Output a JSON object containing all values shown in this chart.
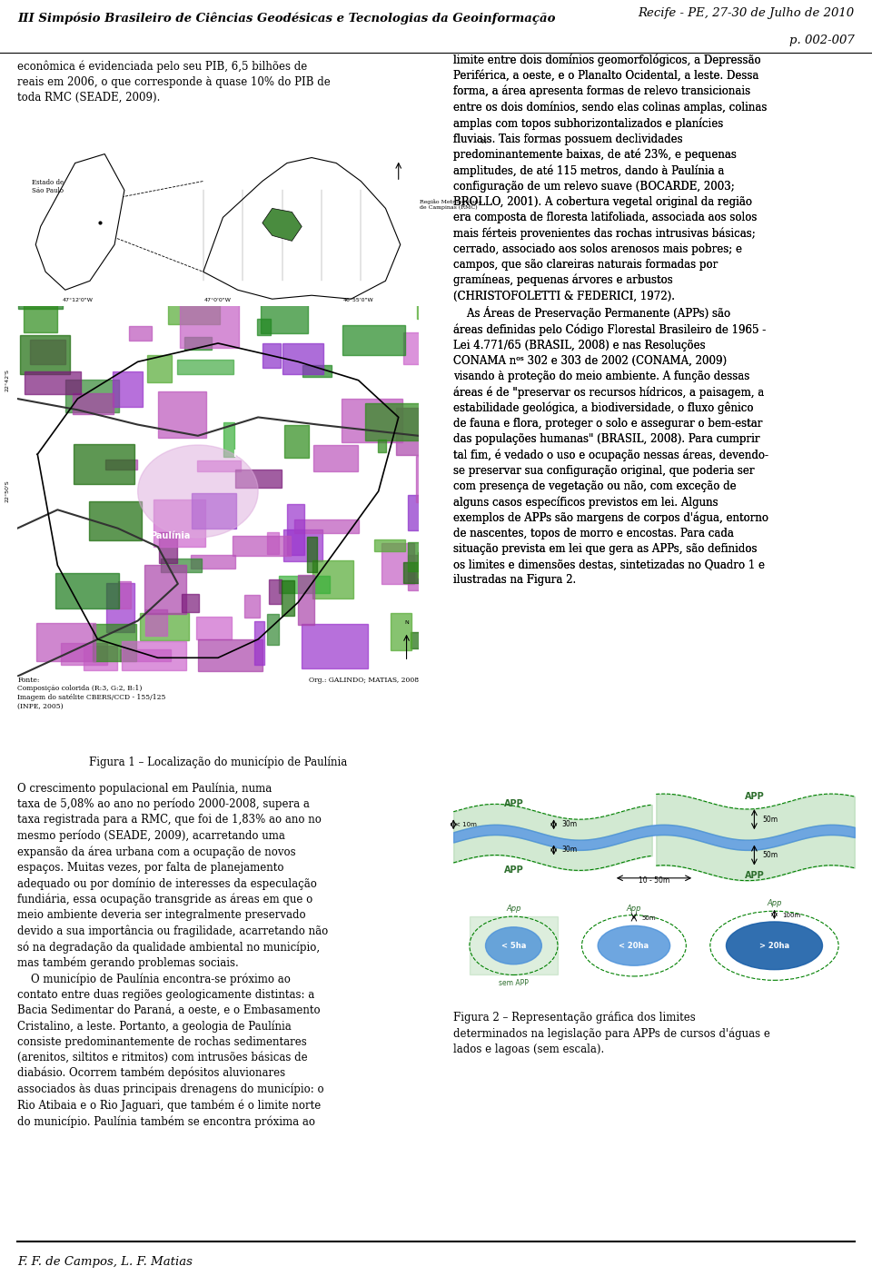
{
  "header_left": "III Simpósio Brasileiro de Ciências Geodésicas e Tecnologias da Geoinformação",
  "header_right": "Recife - PE, 27-30 de Julho de 2010\np. 002-007",
  "footer": "F. F. de Campos, L. F. Matias",
  "col1_text_top": "econômica é evidenciada pelo seu PIB, 6,5 bilhões de\nreais em 2006, o que corresponde à quase 10% do PIB de\ntoda RMC (SEADE, 2009).",
  "figure1_caption": "Figura 1 – Localização do município de Paulínia",
  "figure1_source": "Fonte:\nComposição colorida (R:3, G:2, B:1)\nImagem do satélite CBERS/CCD - 155/125\n(INPE, 2005)",
  "figure1_org": "Org.: GALINDO; MATIAS, 2008",
  "col1_text_bottom": "O crescimento populacional em Paulínia, numa\ntaxa de 5,08% ao ano no período 2000-2008, supera a\ntaxa registrada para a RMC, que foi de 1,83% ao ano no\nmesmo período (SEADE, 2009), acarretando uma\nexpansão da área urbana com a ocupação de novos\nespaços. Muitas vezes, por falta de planejamento\nadequado ou por domínio de interesses da especulação\nfundiária, essa ocupação transgride as áreas em que o\nmeio ambiente deveria ser integralmente preservado\ndevido a sua importância ou fragilidade, acarretando não\nsó na degradação da qualidade ambiental no município,\nmas também gerando problemas sociais.\n    O município de Paulínia encontra-se próximo ao\ncontato entre duas regiões geologicamente distintas: a\nBacia Sedimentar do Paraná, a oeste, e o Embasamento\nCristalino, a leste. Portanto, a geologia de Paulínia\nconsiste predominantemente de rochas sedimentares\n(arenitos, siltitos e ritmitos) com intrusões básicas de\ndiabásio. Ocorrem também depósitos aluvionares\nassociados às duas principais drenagens do município: o\nRio Atibaia e o Rio Jaguari, que também é o limite norte\ndo município. Paulínia também se encontra próxima ao",
  "col2_text": "limite entre dois domínios geomorfológicos, a Depressão\nPeriférica, a oeste, e o Planalto Ocidental, a leste. Dessa\nforma, a área apresenta formas de relevo transicionais\nentre os dois domínios, sendo elas colinas amplas, colinas\namplas com topos subhorizontalizados e planícies\nfluviais. Tais formas possuem declividades\npredominantemente baixas, de até 23%, e pequenas\namplitudes, de até 115 metros, dando à Paulínia a\nconfiguração de um relevo suave (BOCARDE, 2003;\nBROLLO, 2001). A cobertura vegetal original da região\nera composta de floresta latifoliada, associada aos solos\nmais férteis provenientes das rochas intrusivas básicas;\ncerrado, associado aos solos arenosos mais pobres; e\ncampos, que são clareiras naturais formadas por\ngramíneas, pequenas árvores e arbustos\n(CHRISTOFOLETTI & FEDERICI, 1972).\n    As Áreas de Preservação Permanente (APPs) são\náreas definidas pelo Código Florestal Brasileiro de 1965 -\nLei 4.771/65 (BRASIL, 2008) e nas Resoluções\nCONAMA nᵒˢ 302 e 303 de 2002 (CONAMA, 2009)\nvisando à proteção do meio ambiente. A função dessas\náreas é de \"preservar os recursos hídricos, a paisagem, a\nestabilidade geológica, a biodiversidade, o fluxo gênico\nde fauna e flora, proteger o solo e assegurar o bem-estar\ndas populações humanas\" (BRASIL, 2008). Para cumprir\ntal fim, é vedado o uso e ocupação nessas áreas, devendo-\nse preservar sua configuração original, que poderia ser\ncom presença de vegetação ou não, com exceção de\nalguns casos específicos previstos em lei. Alguns\nexemplos de APPs são margens de corpos d'água, entorno\nde nascentes, topos de morro e encostas. Para cada\nsituação prevista em lei que gera as APPs, são definidos\nos limites e dimensões destas, sintetizadas no Quadro 1 e\nilustradas na Figura 2.",
  "figure2_caption": "Figura 2 – Representação gráfica dos limites\ndeterminados na legislação para APPs de cursos d'águas e\nlados e lagoas (sem escala).",
  "bg_color": "#ffffff",
  "text_color": "#000000",
  "header_line_color": "#000000",
  "font_size_body": 8.5,
  "font_size_header": 9.5,
  "font_size_caption": 8.5
}
